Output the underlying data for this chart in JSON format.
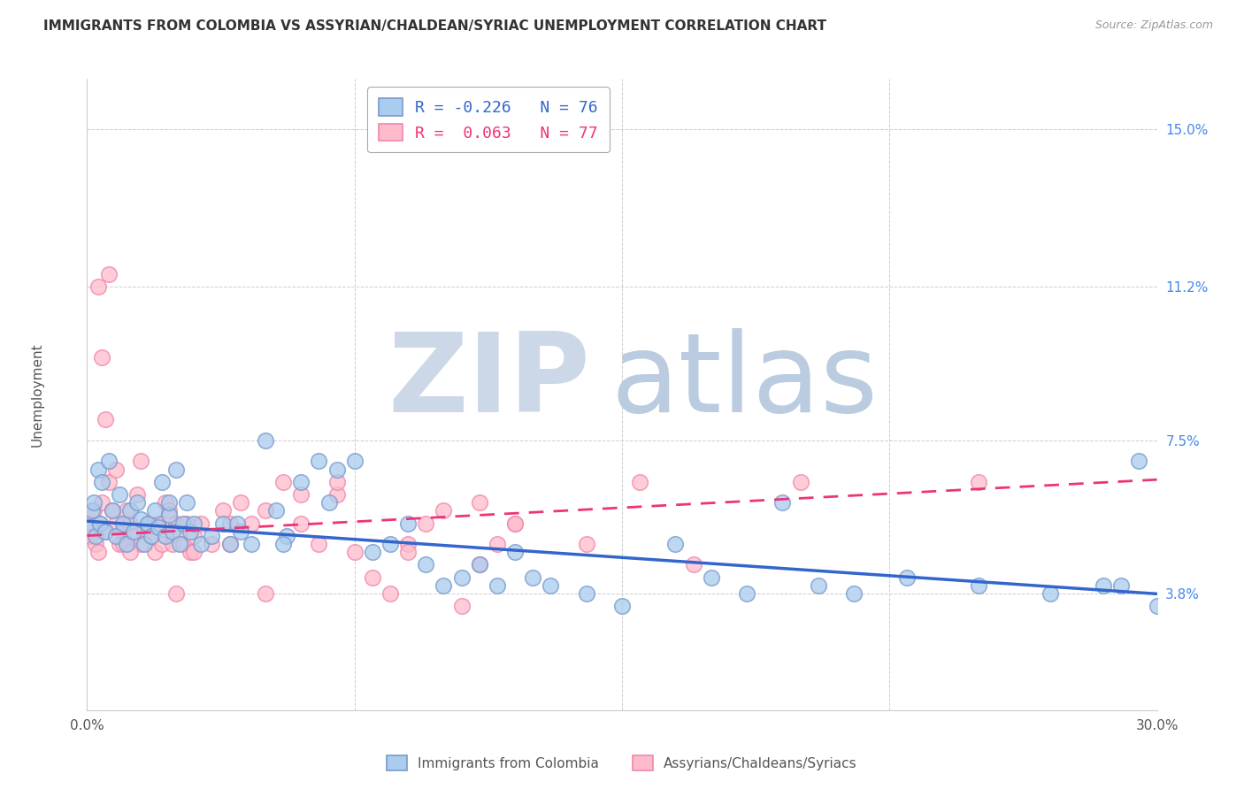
{
  "title": "IMMIGRANTS FROM COLOMBIA VS ASSYRIAN/CHALDEAN/SYRIAC UNEMPLOYMENT CORRELATION CHART",
  "source": "Source: ZipAtlas.com",
  "ylabel_label": "Unemployment",
  "ylabel_ticks": [
    3.8,
    7.5,
    11.2,
    15.0
  ],
  "ylabel_tick_labels": [
    "3.8%",
    "7.5%",
    "11.2%",
    "15.0%"
  ],
  "xmin": 0.0,
  "xmax": 30.0,
  "ymin": 1.0,
  "ymax": 16.2,
  "blue_R": -0.226,
  "blue_N": 76,
  "pink_R": 0.063,
  "pink_N": 77,
  "blue_face": "#aaccee",
  "pink_face": "#ffbbcc",
  "blue_edge": "#7799cc",
  "pink_edge": "#ee88aa",
  "trend_blue": "#3366cc",
  "trend_pink": "#ee3377",
  "watermark_zip_color": "#ccd8e8",
  "watermark_atlas_color": "#bbccdd",
  "legend_blue_label": "Immigrants from Colombia",
  "legend_pink_label": "Assyrians/Chaldeans/Syriacs",
  "blue_trend_y0": 5.55,
  "blue_trend_y1": 3.8,
  "pink_trend_y0": 5.2,
  "pink_trend_y1": 6.55,
  "blue_scatter_x": [
    0.1,
    0.15,
    0.2,
    0.25,
    0.3,
    0.35,
    0.4,
    0.5,
    0.6,
    0.7,
    0.8,
    0.9,
    1.0,
    1.1,
    1.2,
    1.3,
    1.4,
    1.5,
    1.6,
    1.7,
    1.8,
    1.9,
    2.0,
    2.1,
    2.2,
    2.3,
    2.4,
    2.5,
    2.6,
    2.7,
    2.8,
    2.9,
    3.0,
    3.2,
    3.5,
    3.8,
    4.0,
    4.3,
    4.6,
    5.0,
    5.3,
    5.6,
    6.0,
    6.5,
    7.0,
    7.5,
    8.0,
    8.5,
    9.0,
    9.5,
    10.0,
    10.5,
    11.0,
    11.5,
    12.0,
    12.5,
    13.0,
    14.0,
    15.0,
    16.5,
    17.5,
    18.5,
    19.5,
    20.5,
    21.5,
    23.0,
    25.0,
    27.0,
    28.5,
    29.0,
    29.5,
    30.0,
    5.5,
    6.8,
    4.2,
    2.3
  ],
  "blue_scatter_y": [
    5.4,
    5.8,
    6.0,
    5.2,
    6.8,
    5.5,
    6.5,
    5.3,
    7.0,
    5.8,
    5.2,
    6.2,
    5.5,
    5.0,
    5.8,
    5.3,
    6.0,
    5.6,
    5.0,
    5.5,
    5.2,
    5.8,
    5.4,
    6.5,
    5.2,
    5.7,
    5.3,
    6.8,
    5.0,
    5.5,
    6.0,
    5.3,
    5.5,
    5.0,
    5.2,
    5.5,
    5.0,
    5.3,
    5.0,
    7.5,
    5.8,
    5.2,
    6.5,
    7.0,
    6.8,
    7.0,
    4.8,
    5.0,
    5.5,
    4.5,
    4.0,
    4.2,
    4.5,
    4.0,
    4.8,
    4.2,
    4.0,
    3.8,
    3.5,
    5.0,
    4.2,
    3.8,
    6.0,
    4.0,
    3.8,
    4.2,
    4.0,
    3.8,
    4.0,
    4.0,
    7.0,
    3.5,
    5.0,
    6.0,
    5.5,
    6.0
  ],
  "pink_scatter_x": [
    0.1,
    0.15,
    0.2,
    0.25,
    0.3,
    0.35,
    0.4,
    0.5,
    0.6,
    0.7,
    0.8,
    0.9,
    1.0,
    1.1,
    1.2,
    1.3,
    1.4,
    1.5,
    1.6,
    1.7,
    1.8,
    1.9,
    2.0,
    2.1,
    2.2,
    2.3,
    2.4,
    2.5,
    2.6,
    2.7,
    2.8,
    2.9,
    3.0,
    3.2,
    3.5,
    3.8,
    4.0,
    4.3,
    4.6,
    5.0,
    5.5,
    6.0,
    6.5,
    7.0,
    7.5,
    8.0,
    8.5,
    9.0,
    9.5,
    10.0,
    10.5,
    11.0,
    11.5,
    12.0,
    0.3,
    0.4,
    0.5,
    0.6,
    0.8,
    1.0,
    1.2,
    1.5,
    2.0,
    2.5,
    3.0,
    4.0,
    5.0,
    6.0,
    7.0,
    9.0,
    11.0,
    12.0,
    14.0,
    15.5,
    17.0,
    20.0,
    25.0
  ],
  "pink_scatter_y": [
    5.2,
    5.5,
    5.8,
    5.0,
    4.8,
    5.5,
    6.0,
    5.3,
    6.5,
    5.8,
    5.5,
    5.0,
    5.3,
    5.8,
    5.5,
    5.2,
    6.2,
    5.0,
    5.3,
    5.5,
    5.2,
    4.8,
    5.5,
    5.0,
    6.0,
    5.8,
    5.0,
    5.5,
    5.3,
    5.0,
    5.5,
    4.8,
    5.2,
    5.5,
    5.0,
    5.8,
    5.5,
    6.0,
    5.5,
    5.8,
    6.5,
    5.5,
    5.0,
    6.2,
    4.8,
    4.2,
    3.8,
    5.0,
    5.5,
    5.8,
    3.5,
    6.0,
    5.0,
    5.5,
    11.2,
    9.5,
    8.0,
    11.5,
    6.8,
    5.0,
    4.8,
    7.0,
    5.5,
    3.8,
    4.8,
    5.0,
    3.8,
    6.2,
    6.5,
    4.8,
    4.5,
    5.5,
    5.0,
    6.5,
    4.5,
    6.5,
    6.5
  ]
}
